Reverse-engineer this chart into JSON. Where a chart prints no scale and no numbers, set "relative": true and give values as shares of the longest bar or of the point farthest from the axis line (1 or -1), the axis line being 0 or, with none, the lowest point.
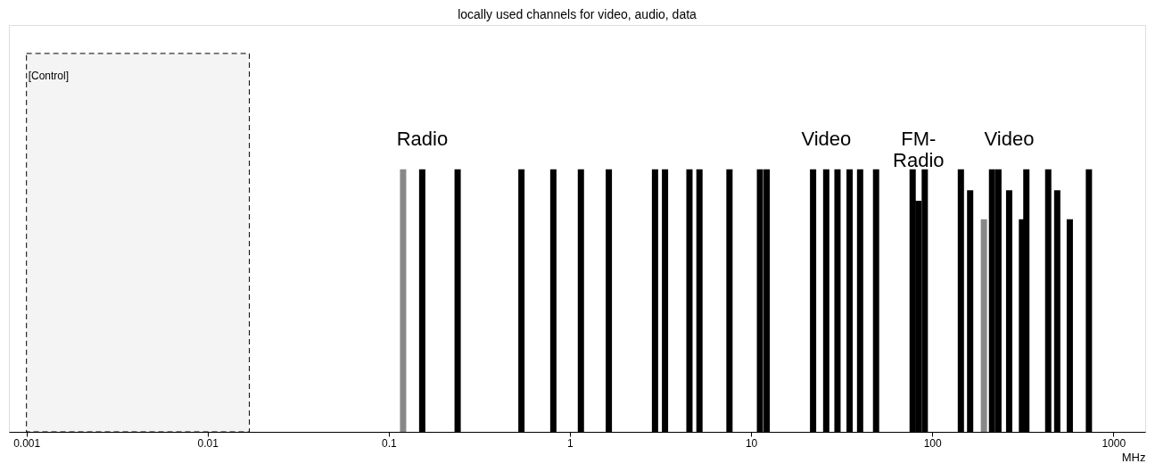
{
  "chart_data": {
    "type": "bar",
    "relative": true,
    "x": [
      0.12,
      0.153,
      0.24,
      0.54,
      0.81,
      1.15,
      1.64,
      2.95,
      3.35,
      4.57,
      5.19,
      7.6,
      11.2,
      12.2,
      22,
      26,
      30,
      35,
      40,
      49,
      78,
      84,
      91,
      144,
      162,
      193,
      214,
      232,
      266,
      313,
      331,
      437,
      490,
      575,
      733
    ],
    "values": [
      1,
      1,
      1,
      1,
      1,
      1,
      1,
      1,
      1,
      1,
      1,
      1,
      1,
      1,
      1,
      1,
      1,
      1,
      1,
      1,
      1,
      0.88,
      1,
      1,
      0.92,
      0.81,
      1,
      1,
      0.92,
      0.81,
      1,
      1,
      0.92,
      0.81,
      1
    ],
    "colors": [
      "#888888",
      "#000000",
      "#000000",
      "#000000",
      "#000000",
      "#000000",
      "#000000",
      "#000000",
      "#000000",
      "#000000",
      "#000000",
      "#000000",
      "#000000",
      "#000000",
      "#000000",
      "#000000",
      "#000000",
      "#000000",
      "#000000",
      "#000000",
      "#000000",
      "#000000",
      "#000000",
      "#000000",
      "#000000",
      "#888888",
      "#000000",
      "#000000",
      "#000000",
      "#000000",
      "#000000",
      "#000000",
      "#000000",
      "#000000",
      "#000000"
    ],
    "xlim": [
      0.0008,
      1500
    ],
    "xticks": [
      0.001,
      0.01,
      0.1,
      1,
      10,
      100,
      1000
    ],
    "log": "x",
    "xlabel": "MHz",
    "bands": [
      {
        "axis": "x",
        "from": 0.001,
        "to": 0.017,
        "label": "[Control]",
        "color": "#f4f4f4"
      }
    ],
    "annotations": [
      "locally used channels for video, audio, data",
      "Radio",
      "Video",
      "FM-\nRadio",
      "Video"
    ]
  }
}
